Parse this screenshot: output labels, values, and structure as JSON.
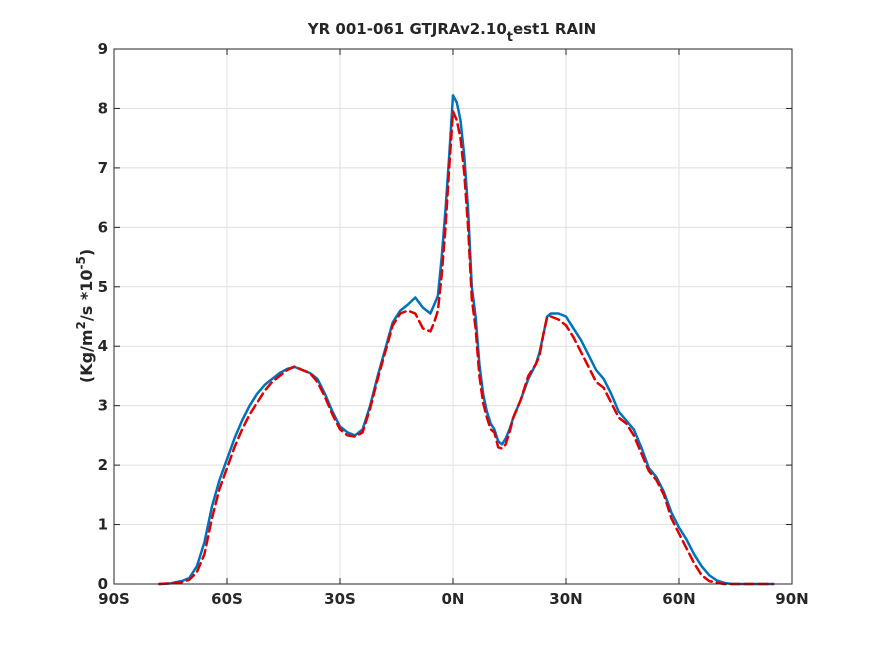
{
  "chart_data": {
    "type": "line",
    "title": "YR 001-061 GTJRAv2.10",
    "title_subscript": "t",
    "title_suffix": "est1 RAIN",
    "ylabel_main": "(Kg/m",
    "ylabel_sup": "2",
    "ylabel_after": "/s   *10",
    "ylabel_exp": "-5",
    "ylabel_close": ")",
    "xlim": [
      -90,
      90
    ],
    "ylim": [
      0,
      9
    ],
    "grid": true,
    "x_ticks": [
      {
        "value": -90,
        "label": "90S"
      },
      {
        "value": -60,
        "label": "60S"
      },
      {
        "value": -30,
        "label": "30S"
      },
      {
        "value": 0,
        "label": "0N"
      },
      {
        "value": 30,
        "label": "30N"
      },
      {
        "value": 60,
        "label": "60N"
      },
      {
        "value": 90,
        "label": "90N"
      }
    ],
    "y_ticks": [
      {
        "value": 0,
        "label": "0"
      },
      {
        "value": 1,
        "label": "1"
      },
      {
        "value": 2,
        "label": "2"
      },
      {
        "value": 3,
        "label": "3"
      },
      {
        "value": 4,
        "label": "4"
      },
      {
        "value": 5,
        "label": "5"
      },
      {
        "value": 6,
        "label": "6"
      },
      {
        "value": 7,
        "label": "7"
      },
      {
        "value": 8,
        "label": "8"
      },
      {
        "value": 9,
        "label": "9"
      }
    ],
    "series": [
      {
        "color": "#0072BD",
        "style": "solid",
        "x": [
          -78,
          -75,
          -72,
          -70,
          -68,
          -66,
          -64,
          -62,
          -60,
          -58,
          -56,
          -54,
          -52,
          -50,
          -48,
          -46,
          -44,
          -42,
          -40,
          -38,
          -36,
          -34,
          -32,
          -30,
          -28,
          -26,
          -24,
          -22,
          -20,
          -18,
          -16,
          -14,
          -12,
          -10,
          -8,
          -6,
          -5,
          -4,
          -3,
          -2,
          -1,
          0,
          1,
          2,
          3,
          4,
          5,
          6,
          7,
          8,
          9,
          10,
          11,
          12,
          13,
          14,
          15,
          16,
          18,
          20,
          22,
          23,
          24,
          25,
          26,
          28,
          30,
          32,
          34,
          36,
          38,
          40,
          42,
          44,
          46,
          48,
          50,
          52,
          54,
          56,
          58,
          60,
          62,
          64,
          66,
          68,
          70,
          72,
          74,
          76,
          78,
          80,
          82,
          84,
          85
        ],
        "values": [
          0,
          0.01,
          0.05,
          0.1,
          0.3,
          0.7,
          1.3,
          1.75,
          2.1,
          2.45,
          2.75,
          3.0,
          3.2,
          3.35,
          3.45,
          3.55,
          3.62,
          3.65,
          3.6,
          3.55,
          3.45,
          3.2,
          2.9,
          2.65,
          2.55,
          2.5,
          2.6,
          3.0,
          3.5,
          3.95,
          4.4,
          4.6,
          4.7,
          4.82,
          4.65,
          4.55,
          4.7,
          4.85,
          5.5,
          6.3,
          7.2,
          8.22,
          8.1,
          7.8,
          7.2,
          6.3,
          5.0,
          4.5,
          3.7,
          3.2,
          2.9,
          2.7,
          2.6,
          2.4,
          2.35,
          2.45,
          2.6,
          2.8,
          3.1,
          3.45,
          3.7,
          3.9,
          4.2,
          4.5,
          4.55,
          4.55,
          4.5,
          4.3,
          4.1,
          3.85,
          3.6,
          3.45,
          3.2,
          2.9,
          2.75,
          2.6,
          2.3,
          1.95,
          1.8,
          1.55,
          1.2,
          0.95,
          0.75,
          0.5,
          0.3,
          0.15,
          0.06,
          0.02,
          0.0,
          0.0,
          0.0,
          0.0,
          0.0,
          0.0,
          0.0
        ]
      },
      {
        "color": "#E00000",
        "style": "dashed",
        "x": [
          -78,
          -75,
          -72,
          -70,
          -68,
          -66,
          -64,
          -62,
          -60,
          -58,
          -56,
          -54,
          -52,
          -50,
          -48,
          -46,
          -44,
          -42,
          -40,
          -38,
          -36,
          -34,
          -32,
          -30,
          -28,
          -26,
          -24,
          -22,
          -20,
          -18,
          -16,
          -14,
          -12,
          -10,
          -8,
          -6,
          -5,
          -4,
          -3,
          -2,
          -1,
          0,
          1,
          2,
          3,
          4,
          5,
          6,
          7,
          8,
          9,
          10,
          11,
          12,
          13,
          14,
          15,
          16,
          18,
          20,
          22,
          23,
          24,
          25,
          26,
          28,
          30,
          32,
          34,
          36,
          38,
          40,
          42,
          44,
          46,
          48,
          50,
          52,
          54,
          56,
          58,
          60,
          62,
          64,
          66,
          68,
          70,
          72,
          74,
          76,
          78,
          80,
          82,
          84,
          85
        ],
        "values": [
          0,
          0.01,
          0.03,
          0.07,
          0.2,
          0.5,
          1.1,
          1.6,
          1.95,
          2.3,
          2.6,
          2.85,
          3.05,
          3.25,
          3.4,
          3.5,
          3.6,
          3.66,
          3.6,
          3.55,
          3.4,
          3.15,
          2.85,
          2.6,
          2.5,
          2.48,
          2.55,
          2.95,
          3.45,
          3.9,
          4.35,
          4.55,
          4.6,
          4.55,
          4.3,
          4.25,
          4.4,
          4.6,
          5.2,
          6.0,
          7.0,
          7.95,
          7.8,
          7.5,
          6.9,
          6.0,
          4.8,
          4.3,
          3.5,
          3.05,
          2.8,
          2.6,
          2.55,
          2.3,
          2.28,
          2.35,
          2.55,
          2.8,
          3.1,
          3.5,
          3.7,
          3.85,
          4.2,
          4.5,
          4.5,
          4.45,
          4.35,
          4.15,
          3.9,
          3.65,
          3.4,
          3.3,
          3.05,
          2.8,
          2.7,
          2.5,
          2.2,
          1.9,
          1.75,
          1.5,
          1.1,
          0.85,
          0.6,
          0.35,
          0.15,
          0.05,
          0.02,
          0.0,
          0.0,
          0.0,
          0.0,
          0.0,
          0.0,
          0.0,
          0.0
        ]
      }
    ]
  }
}
